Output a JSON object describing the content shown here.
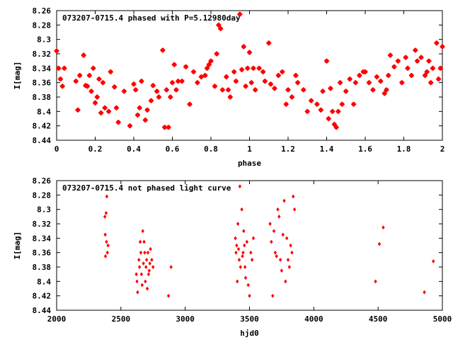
{
  "chart_data": [
    {
      "type": "scatter",
      "title": "073207-0715.4 phased with P=5.12980day",
      "xlabel": "phase",
      "ylabel": "I[mag]",
      "xlim": [
        0,
        2
      ],
      "ylim": [
        8.44,
        8.26
      ],
      "y_inverted": true,
      "xticks": [
        "0",
        "0.2",
        "0.4",
        "0.6",
        "0.8",
        "1",
        "1.2",
        "1.4",
        "1.6",
        "1.8",
        "2"
      ],
      "yticks": [
        "8.26",
        "8.28",
        "8.3",
        "8.32",
        "8.34",
        "8.36",
        "8.38",
        "8.4",
        "8.42",
        "8.44"
      ],
      "marker_color": "#ff0000",
      "series": [
        {
          "x": [
            0.0,
            0.01,
            0.02,
            0.03,
            0.04,
            0.1,
            0.11,
            0.12,
            0.14,
            0.15,
            0.16,
            0.17,
            0.18,
            0.19,
            0.2,
            0.21,
            0.22,
            0.23,
            0.24,
            0.25,
            0.27,
            0.28,
            0.3,
            0.31,
            0.32,
            0.35,
            0.38,
            0.4,
            0.41,
            0.42,
            0.43,
            0.44,
            0.46,
            0.47,
            0.49,
            0.5,
            0.52,
            0.53,
            0.55,
            0.56,
            0.57,
            0.58,
            0.59,
            0.6,
            0.61,
            0.62,
            0.63,
            0.65,
            0.67,
            0.69,
            0.71,
            0.73,
            0.75,
            0.77,
            0.78,
            0.79,
            0.8,
            0.82,
            0.83,
            0.84,
            0.85,
            0.86,
            0.88,
            0.89,
            0.9,
            0.92,
            0.93,
            0.95,
            0.96,
            0.97,
            0.98,
            0.99,
            1.0,
            1.01,
            1.02,
            1.03,
            1.05,
            1.07,
            1.08,
            1.1,
            1.11,
            1.13,
            1.15,
            1.17,
            1.19,
            1.2,
            1.22,
            1.24,
            1.25,
            1.28,
            1.3,
            1.32,
            1.35,
            1.37,
            1.38,
            1.4,
            1.41,
            1.42,
            1.43,
            1.44,
            1.45,
            1.46,
            1.47,
            1.48,
            1.5,
            1.52,
            1.54,
            1.55,
            1.57,
            1.59,
            1.6,
            1.62,
            1.64,
            1.66,
            1.68,
            1.7,
            1.71,
            1.72,
            1.73,
            1.75,
            1.77,
            1.79,
            1.81,
            1.82,
            1.84,
            1.86,
            1.87,
            1.89,
            1.91,
            1.92,
            1.93,
            1.94,
            1.95,
            1.97,
            1.98,
            1.99,
            2.0
          ],
          "y": [
            8.316,
            8.34,
            8.355,
            8.365,
            8.34,
            8.358,
            8.398,
            8.35,
            8.322,
            8.364,
            8.365,
            8.35,
            8.372,
            8.34,
            8.388,
            8.38,
            8.355,
            8.402,
            8.36,
            8.395,
            8.4,
            8.345,
            8.366,
            8.395,
            8.415,
            8.372,
            8.42,
            8.362,
            8.37,
            8.405,
            8.395,
            8.358,
            8.412,
            8.398,
            8.385,
            8.364,
            8.372,
            8.38,
            8.315,
            8.422,
            8.37,
            8.422,
            8.38,
            8.36,
            8.335,
            8.37,
            8.358,
            8.358,
            8.338,
            8.39,
            8.345,
            8.36,
            8.352,
            8.35,
            8.34,
            8.335,
            8.33,
            8.365,
            8.32,
            8.28,
            8.285,
            8.37,
            8.352,
            8.37,
            8.38,
            8.345,
            8.358,
            8.265,
            8.342,
            8.31,
            8.365,
            8.34,
            8.318,
            8.36,
            8.34,
            8.37,
            8.34,
            8.345,
            8.358,
            8.305,
            8.362,
            8.368,
            8.35,
            8.345,
            8.39,
            8.37,
            8.38,
            8.35,
            8.36,
            8.37,
            8.4,
            8.385,
            8.39,
            8.398,
            8.372,
            8.33,
            8.41,
            8.368,
            8.4,
            8.418,
            8.422,
            8.4,
            8.36,
            8.39,
            8.372,
            8.355,
            8.39,
            8.36,
            8.35,
            8.345,
            8.345,
            8.36,
            8.37,
            8.352,
            8.358,
            8.375,
            8.37,
            8.35,
            8.322,
            8.338,
            8.33,
            8.36,
            8.325,
            8.34,
            8.35,
            8.315,
            8.33,
            8.325,
            8.35,
            8.345,
            8.33,
            8.36,
            8.34,
            8.305,
            8.355,
            8.34,
            8.31
          ]
        }
      ]
    },
    {
      "type": "scatter",
      "title": "073207-0715.4 not phased light curve",
      "xlabel": "hjd0",
      "ylabel": "I[mag]",
      "xlim": [
        2000,
        5000
      ],
      "ylim": [
        8.44,
        8.26
      ],
      "y_inverted": true,
      "xticks": [
        "2000",
        "2500",
        "3000",
        "3500",
        "4000",
        "4500",
        "5000"
      ],
      "yticks": [
        "8.26",
        "8.28",
        "8.3",
        "8.32",
        "8.34",
        "8.36",
        "8.38",
        "8.4",
        "8.42",
        "8.44"
      ],
      "marker_color": "#ff0000",
      "series": [
        {
          "x": [
            2375,
            2378,
            2380,
            2385,
            2388,
            2390,
            2395,
            2400,
            2620,
            2625,
            2630,
            2640,
            2645,
            2650,
            2655,
            2660,
            2665,
            2670,
            2675,
            2680,
            2685,
            2690,
            2695,
            2700,
            2705,
            2710,
            2715,
            2720,
            2725,
            2730,
            2740,
            2750,
            2870,
            2890,
            3390,
            3395,
            3400,
            3405,
            3410,
            3415,
            3420,
            3425,
            3430,
            3440,
            3445,
            3450,
            3455,
            3460,
            3465,
            3470,
            3480,
            3490,
            3500,
            3510,
            3520,
            3530,
            3660,
            3670,
            3680,
            3690,
            3700,
            3710,
            3720,
            3730,
            3740,
            3750,
            3760,
            3770,
            3780,
            3790,
            3800,
            3810,
            3820,
            3830,
            3840,
            3850,
            4480,
            4510,
            4540,
            4860,
            4930
          ],
          "y": [
            8.31,
            8.335,
            8.365,
            8.305,
            8.345,
            8.282,
            8.36,
            8.35,
            8.39,
            8.4,
            8.415,
            8.37,
            8.38,
            8.345,
            8.36,
            8.39,
            8.405,
            8.33,
            8.375,
            8.345,
            8.36,
            8.4,
            8.38,
            8.37,
            8.41,
            8.36,
            8.39,
            8.385,
            8.375,
            8.355,
            8.37,
            8.38,
            8.42,
            8.38,
            8.34,
            8.36,
            8.35,
            8.4,
            8.32,
            8.355,
            8.37,
            8.268,
            8.38,
            8.3,
            8.365,
            8.36,
            8.33,
            8.35,
            8.38,
            8.395,
            8.345,
            8.405,
            8.42,
            8.36,
            8.37,
            8.34,
            8.32,
            8.345,
            8.42,
            8.33,
            8.36,
            8.365,
            8.3,
            8.31,
            8.37,
            8.385,
            8.335,
            8.288,
            8.4,
            8.34,
            8.37,
            8.38,
            8.35,
            8.36,
            8.282,
            8.3,
            8.4,
            8.348,
            8.325,
            8.415,
            8.372
          ]
        }
      ]
    }
  ]
}
